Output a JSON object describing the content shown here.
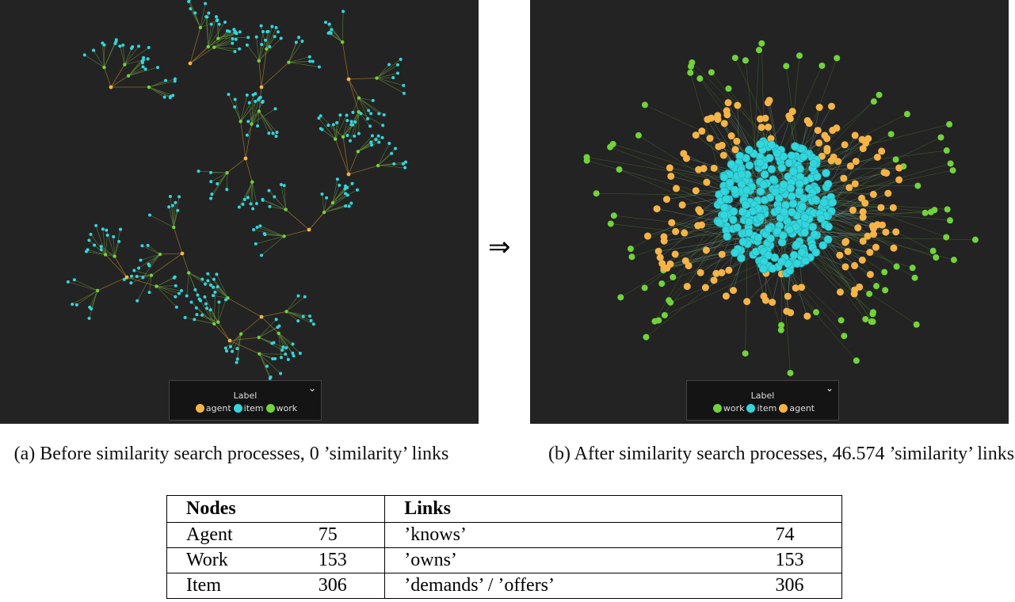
{
  "panels": [
    {
      "legend": {
        "title": "Label",
        "entries": [
          {
            "name": "agent",
            "color": "#f5b447"
          },
          {
            "name": "item",
            "color": "#33d6dd"
          },
          {
            "name": "work",
            "color": "#72d23c"
          }
        ]
      },
      "caption": "(a) Before similarity search processes, 0 ’similarity’ links"
    },
    {
      "legend": {
        "title": "Label",
        "entries": [
          {
            "name": "work",
            "color": "#72d23c"
          },
          {
            "name": "item",
            "color": "#33d6dd"
          },
          {
            "name": "agent",
            "color": "#f5b447"
          }
        ]
      },
      "caption": "(b) After similarity search processes, 46.574 ’similarity’ links"
    }
  ],
  "arrow": "⇒",
  "table": {
    "header": [
      "Nodes",
      "Links"
    ],
    "rows": [
      [
        "Agent",
        75,
        "’knows’",
        74
      ],
      [
        "Work",
        153,
        "’owns’",
        153
      ],
      [
        "Item",
        306,
        "’demands’ / ’offers’",
        306
      ]
    ]
  }
}
